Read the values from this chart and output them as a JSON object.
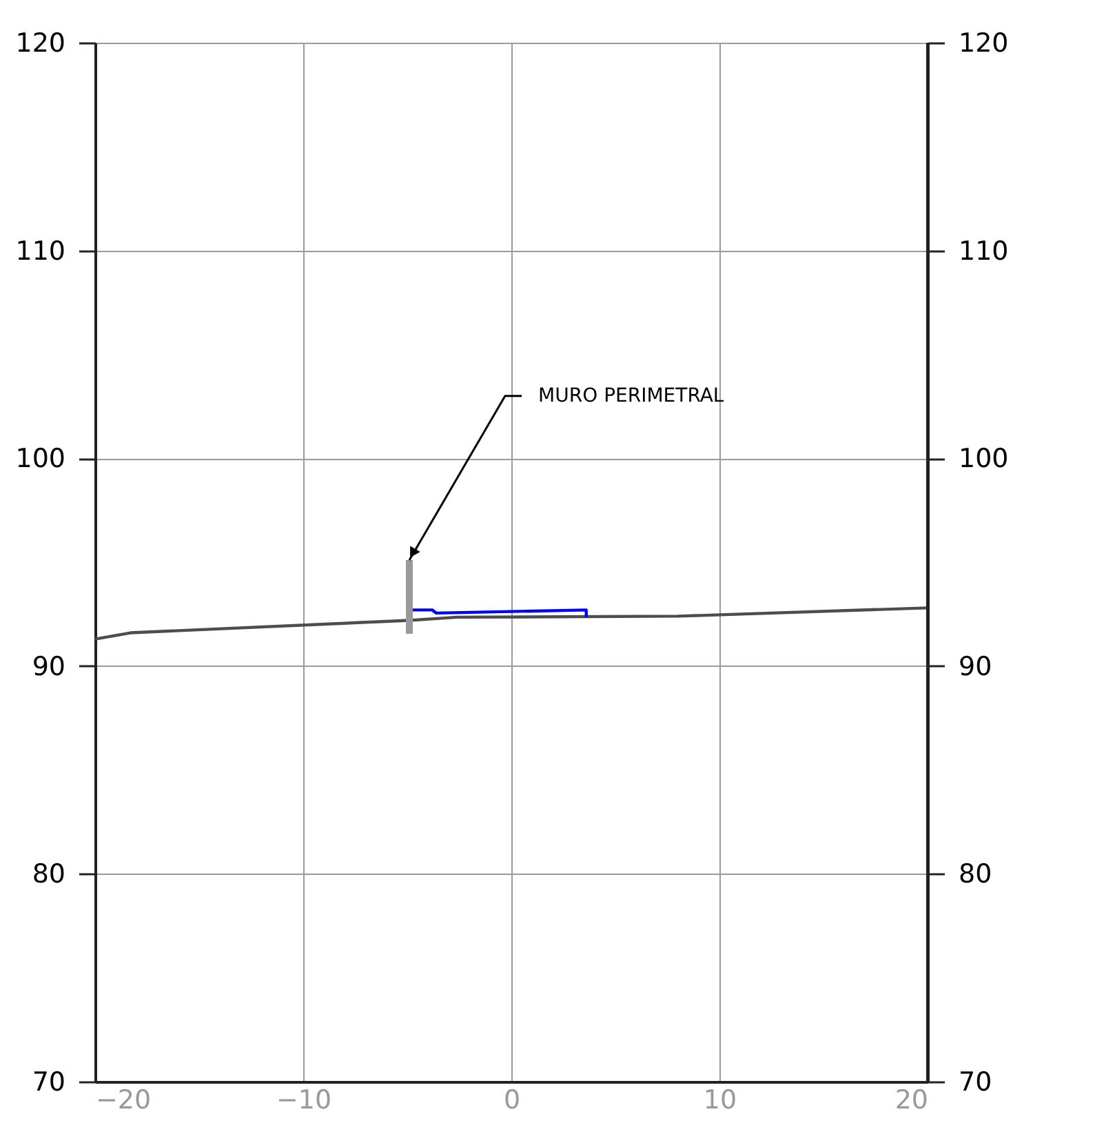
{
  "chart_data": {
    "type": "line",
    "xlim": [
      -20,
      20
    ],
    "xticks": [
      -20,
      -10,
      0,
      10,
      20
    ],
    "ylim": [
      70,
      120
    ],
    "yticks": [
      70,
      80,
      90,
      100,
      110,
      120
    ],
    "y2lim": [
      70,
      120
    ],
    "y2ticks": [
      70,
      80,
      90,
      100,
      110,
      120
    ],
    "grid": true,
    "marker": "none",
    "line_style": "solid",
    "series": [
      {
        "color": "#4d4d4d",
        "x": [
          -20,
          -18.3,
          -4.9,
          -2.6,
          8.0,
          20
        ],
        "values": [
          91.3,
          91.6,
          92.2,
          92.35,
          92.4,
          92.8
        ]
      },
      {
        "color": "#0000ff",
        "x": [
          -4.9,
          -3.8,
          -3.6,
          3.6,
          3.6
        ],
        "values": [
          92.7,
          92.7,
          92.55,
          92.7,
          92.35
        ]
      },
      {
        "color": "#999999",
        "x": [
          -4.9,
          -4.9
        ],
        "values": [
          95.1,
          91.55
        ]
      }
    ],
    "annotations": [
      {
        "text": "MURO PERIMETRAL",
        "x": -4.9,
        "y": 95.1
      }
    ]
  }
}
